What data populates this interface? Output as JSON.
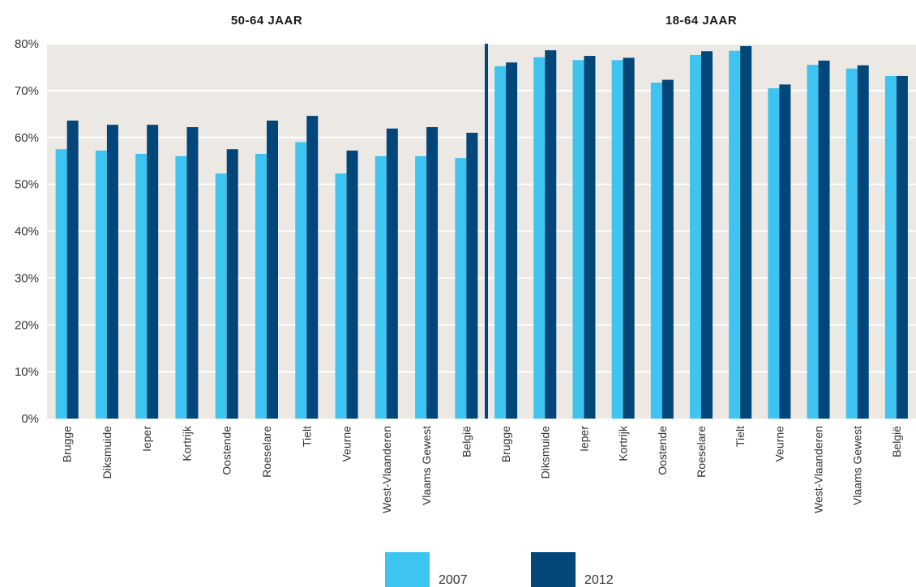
{
  "chart_data": {
    "type": "bar",
    "panels": [
      {
        "title": "50-64 JAAR",
        "categories": [
          "Brugge",
          "Diksmuide",
          "Ieper",
          "Kortrijk",
          "Oostende",
          "Roeselare",
          "Tielt",
          "Veurne",
          "West-Vlaanderen",
          "Vlaams Gewest",
          "België"
        ],
        "series": [
          {
            "name": "2007",
            "values": [
              57.5,
              57.2,
              56.5,
              56.0,
              52.3,
              56.5,
              59.0,
              52.3,
              56.0,
              56.0,
              55.6
            ]
          },
          {
            "name": "2012",
            "values": [
              63.6,
              62.7,
              62.7,
              62.2,
              57.5,
              63.6,
              64.6,
              57.2,
              61.9,
              62.2,
              61.0
            ]
          }
        ]
      },
      {
        "title": "18-64 JAAR",
        "categories": [
          "Brugge",
          "Diksmuide",
          "Ieper",
          "Kortrijk",
          "Oostende",
          "Roeselare",
          "Tielt",
          "Veurne",
          "West-Vlaanderen",
          "Vlaams Gewest",
          "België"
        ],
        "series": [
          {
            "name": "2007",
            "values": [
              75.2,
              77.1,
              76.5,
              76.5,
              71.7,
              77.6,
              78.5,
              70.5,
              75.5,
              74.7,
              73.1
            ]
          },
          {
            "name": "2012",
            "values": [
              76.0,
              78.6,
              77.4,
              77.0,
              72.3,
              78.4,
              79.5,
              71.3,
              76.4,
              75.4,
              73.1
            ]
          }
        ]
      }
    ],
    "ylim": [
      0,
      80
    ],
    "yticks": [
      "0%",
      "10%",
      "20%",
      "30%",
      "40%",
      "50%",
      "60%",
      "70%",
      "80%"
    ],
    "grid": true,
    "legend_position": "bottom-center",
    "colors": {
      "2007": "#3ec4f0",
      "2012": "#02467a",
      "plot_background": "#ece8e4",
      "divider": "#02467a"
    }
  }
}
